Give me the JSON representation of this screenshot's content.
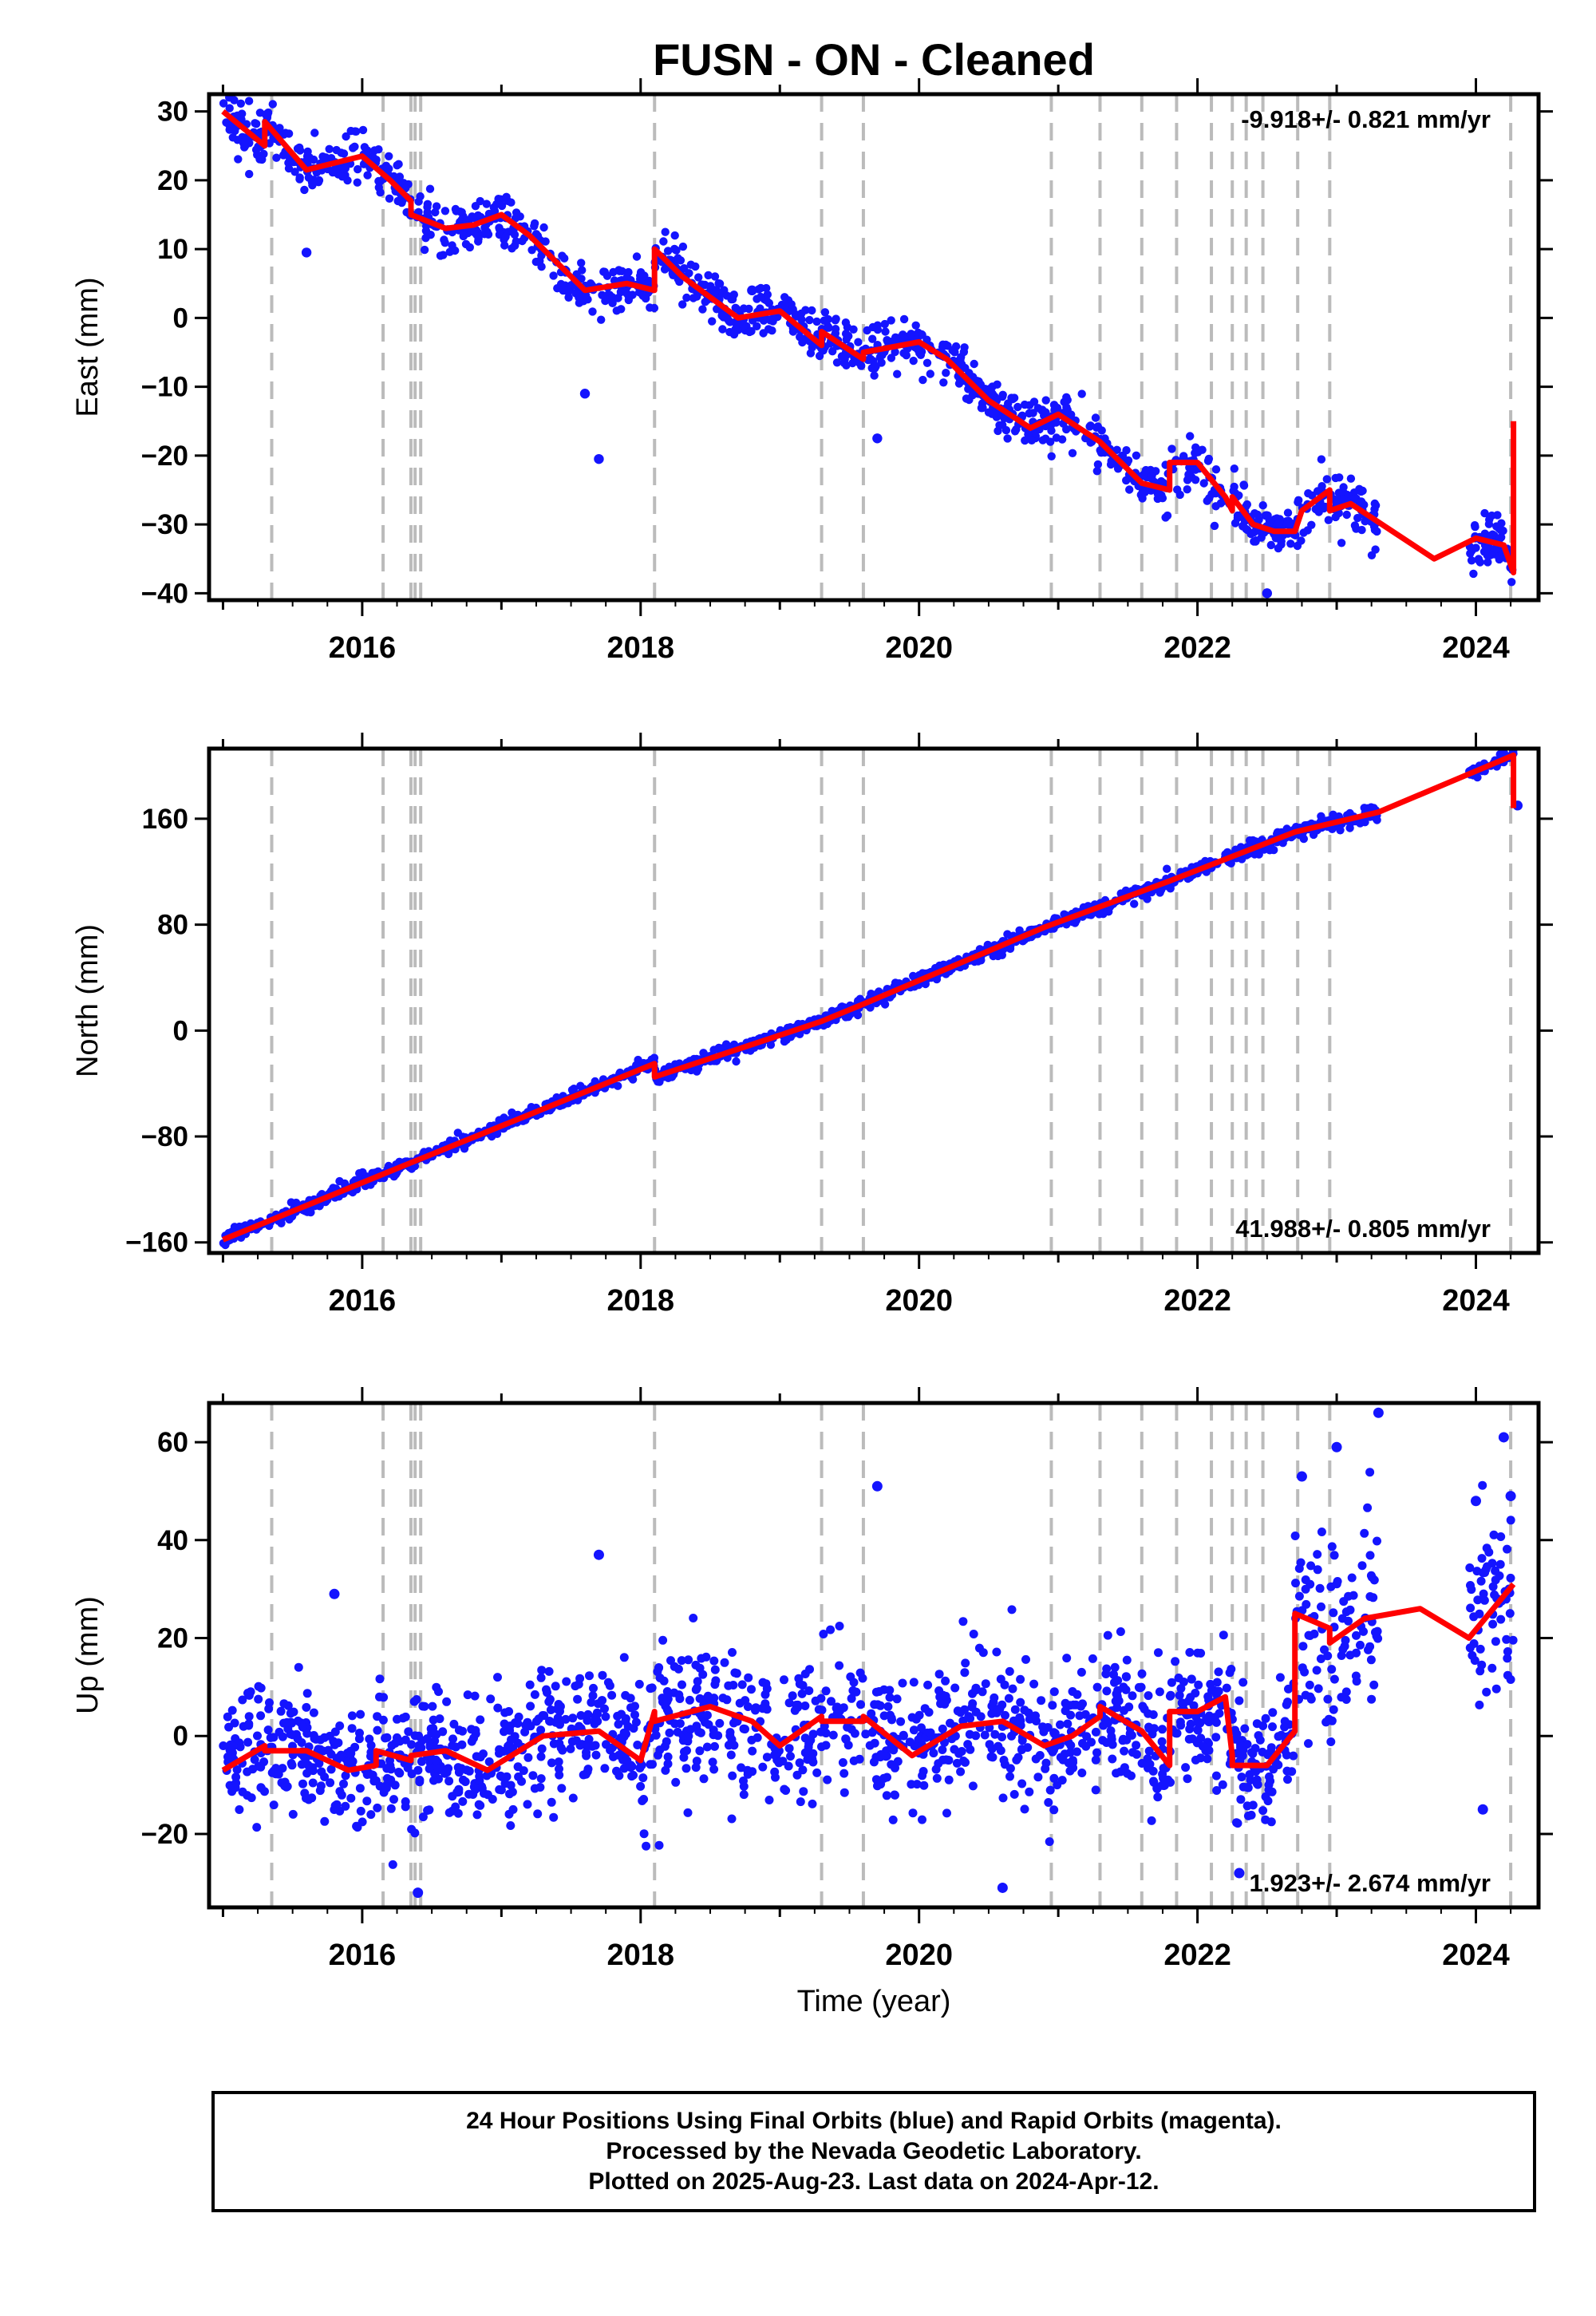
{
  "title": "FUSN  - ON - Cleaned",
  "colors": {
    "data": "#1414ff",
    "model": "#ff0000",
    "steps": "#bbbbbb"
  },
  "chart_data": [
    {
      "type": "scatter",
      "ylabel": "East (mm)",
      "xlabel": "",
      "xlim": [
        2014.9,
        2024.45
      ],
      "ylim": [
        -41,
        32.5
      ],
      "x_ticks": [
        2016,
        2018,
        2020,
        2022,
        2024
      ],
      "y_ticks": [
        30,
        20,
        10,
        0,
        -10,
        -20,
        -30,
        -40
      ],
      "y_tick_labels": [
        "30",
        "20",
        "10",
        "0",
        "−10",
        "−20",
        "−30",
        "−40"
      ],
      "rate_label": "-9.918+/- 0.821 mm/yr",
      "rate_position": "top-right",
      "series": [
        {
          "kind": "model",
          "x": [
            2015.0,
            2015.3,
            2015.3,
            2015.6,
            2016.0,
            2016.2,
            2016.35,
            2016.35,
            2016.6,
            2016.8,
            2017.0,
            2017.2,
            2017.6,
            2017.9,
            2018.1,
            2018.1,
            2018.3,
            2018.7,
            2019.0,
            2019.3,
            2019.3,
            2019.6,
            2019.6,
            2020.0,
            2020.2,
            2020.5,
            2020.8,
            2021.0,
            2021.3,
            2021.6,
            2021.8,
            2021.8,
            2022.0,
            2022.2,
            2022.25,
            2022.25,
            2022.4,
            2022.55,
            2022.7,
            2022.75,
            2022.95,
            2022.95,
            2023.1,
            2023.4,
            2023.7,
            2024.0,
            2024.2,
            2024.27,
            2024.27
          ],
          "y": [
            30,
            25,
            28.5,
            21.5,
            23.5,
            20,
            17,
            15,
            13,
            13.5,
            15,
            12,
            4,
            5,
            4,
            10,
            6,
            0,
            1,
            -4,
            -2,
            -6,
            -5,
            -3.5,
            -6,
            -12,
            -16,
            -14,
            -18,
            -24,
            -25,
            -21,
            -21,
            -26,
            -28,
            -26,
            -30,
            -31,
            -31,
            -28,
            -25,
            -28,
            -27,
            -31,
            -35,
            -32,
            -33,
            -37,
            -15
          ]
        },
        {
          "kind": "points",
          "x": [
            2015.6,
            2016.35,
            2017.6,
            2017.7,
            2018.8,
            2019.7,
            2022.5
          ],
          "y": [
            9.5,
            15,
            -11,
            -20.5,
            4,
            -17.5,
            -40
          ]
        }
      ]
    },
    {
      "type": "scatter",
      "ylabel": "North (mm)",
      "xlabel": "",
      "xlim": [
        2014.9,
        2024.45
      ],
      "ylim": [
        -168,
        213
      ],
      "x_ticks": [
        2016,
        2018,
        2020,
        2022,
        2024
      ],
      "y_ticks": [
        160,
        80,
        0,
        -80,
        -160
      ],
      "y_tick_labels": [
        "160",
        "80",
        "0",
        "−80",
        "−160"
      ],
      "rate_label": "41.988+/- 0.805 mm/yr",
      "rate_position": "bottom-right",
      "series": [
        {
          "kind": "model",
          "x": [
            2015.0,
            2016.3,
            2018.1,
            2018.1,
            2019.3,
            2019.6,
            2020.9,
            2021.8,
            2022.7,
            2023.3,
            2024.27,
            2024.27
          ],
          "y": [
            -158,
            -102,
            -25,
            -35,
            7,
            20,
            78,
            113,
            150,
            165,
            208,
            168
          ]
        },
        {
          "kind": "points",
          "x": [
            2024.3
          ],
          "y": [
            170
          ]
        }
      ]
    },
    {
      "type": "scatter",
      "ylabel": "Up (mm)",
      "xlabel": "Time (year)",
      "xlim": [
        2014.9,
        2024.45
      ],
      "ylim": [
        -35,
        68
      ],
      "x_ticks": [
        2016,
        2018,
        2020,
        2022,
        2024
      ],
      "y_ticks": [
        60,
        40,
        20,
        0,
        -20
      ],
      "y_tick_labels": [
        "60",
        "40",
        "20",
        "0",
        "−20"
      ],
      "rate_label": "1.923+/- 2.674 mm/yr",
      "rate_position": "bottom-right",
      "series": [
        {
          "kind": "model",
          "x": [
            2015.0,
            2015.3,
            2015.3,
            2015.6,
            2015.9,
            2016.1,
            2016.1,
            2016.35,
            2016.35,
            2016.6,
            2016.9,
            2017.3,
            2017.7,
            2018.0,
            2018.1,
            2018.1,
            2018.5,
            2018.8,
            2019.0,
            2019.3,
            2019.3,
            2019.6,
            2019.6,
            2019.95,
            2020.3,
            2020.6,
            2020.9,
            2021.1,
            2021.3,
            2021.3,
            2021.6,
            2021.8,
            2021.8,
            2022.0,
            2022.2,
            2022.25,
            2022.25,
            2022.5,
            2022.7,
            2022.7,
            2022.95,
            2022.95,
            2023.2,
            2023.6,
            2023.95,
            2024.27
          ],
          "y": [
            -7,
            -2,
            -3,
            -3,
            -7,
            -6,
            -3,
            -5,
            -4,
            -3,
            -7,
            0,
            1,
            -5,
            5,
            3,
            6,
            3,
            -2,
            4,
            3,
            3,
            4,
            -4,
            2,
            3,
            -2,
            0,
            4,
            6,
            1,
            -6,
            5,
            5,
            8,
            -4,
            -6,
            -6,
            1,
            25,
            22,
            19,
            24,
            26,
            20,
            31
          ]
        },
        {
          "kind": "points",
          "x": [
            2015.8,
            2016.4,
            2017.7,
            2019.7,
            2020.6,
            2022.3,
            2022.75,
            2023.0,
            2023.3,
            2024.0,
            2024.05,
            2024.2,
            2024.25
          ],
          "y": [
            29,
            -32,
            37,
            51,
            -31,
            -28,
            53,
            59,
            66,
            48,
            -15,
            61,
            49
          ]
        }
      ]
    }
  ],
  "step_epochs": [
    2015.35,
    2016.15,
    2016.35,
    2016.38,
    2016.42,
    2018.1,
    2019.3,
    2019.6,
    2020.95,
    2021.3,
    2021.6,
    2021.85,
    2022.1,
    2022.25,
    2022.35,
    2022.47,
    2022.72,
    2022.95,
    2024.25
  ],
  "footer": {
    "line1": "24 Hour Positions Using Final Orbits (blue) and Rapid Orbits (magenta).",
    "line2": "Processed by the Nevada Geodetic Laboratory.",
    "line3": "Plotted on 2025-Aug-23. Last data on 2024-Apr-12."
  }
}
